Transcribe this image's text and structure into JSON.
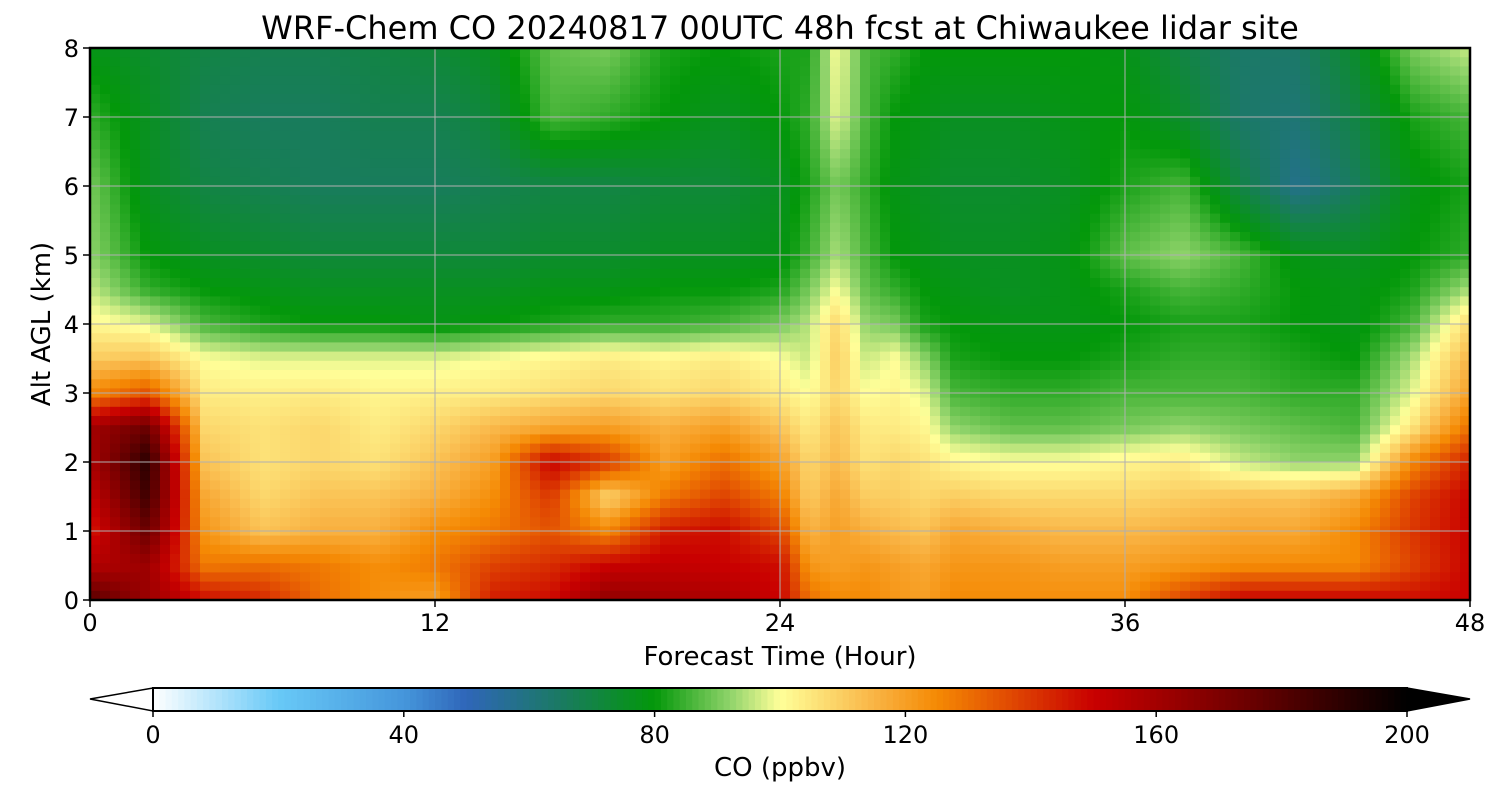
{
  "chart_data": {
    "type": "heatmap",
    "title": "WRF-Chem CO  20240817 00UTC 48h fcst at Chiwaukee lidar site",
    "xlabel": "Forecast Time (Hour)",
    "ylabel": "Alt AGL (km)",
    "xlim": [
      0,
      48
    ],
    "ylim": [
      0,
      8
    ],
    "x_ticks": [
      "0",
      "12",
      "24",
      "36",
      "48"
    ],
    "y_ticks": [
      "0",
      "1",
      "2",
      "3",
      "4",
      "5",
      "6",
      "7",
      "8"
    ],
    "grid": true,
    "colorbar": {
      "label": "CO  (ppbv)",
      "range": [
        0,
        200
      ],
      "ticks": [
        "0",
        "40",
        "80",
        "120",
        "160",
        "200"
      ],
      "extend": "both",
      "colors": [
        {
          "v": 0,
          "c": "#ffffff"
        },
        {
          "v": 20,
          "c": "#68c9f7"
        },
        {
          "v": 40,
          "c": "#4596db"
        },
        {
          "v": 50,
          "c": "#2f66b9"
        },
        {
          "v": 65,
          "c": "#1a7a62"
        },
        {
          "v": 80,
          "c": "#03980a"
        },
        {
          "v": 92,
          "c": "#8fd36a"
        },
        {
          "v": 100,
          "c": "#ffff99"
        },
        {
          "v": 115,
          "c": "#f9b445"
        },
        {
          "v": 125,
          "c": "#f58a04"
        },
        {
          "v": 150,
          "c": "#c90000"
        },
        {
          "v": 175,
          "c": "#6a0000"
        },
        {
          "v": 200,
          "c": "#000000"
        }
      ]
    },
    "time_hours": [
      0,
      2,
      4,
      6,
      8,
      10,
      12,
      14,
      16,
      18,
      20,
      22,
      24,
      25,
      26,
      27,
      28,
      29,
      30,
      32,
      34,
      36,
      38,
      40,
      42,
      44,
      46,
      48
    ],
    "altitudes_km": [
      0,
      0.5,
      1,
      1.5,
      2,
      2.5,
      3,
      3.5,
      4,
      4.5,
      5,
      6,
      7,
      8
    ],
    "values_ppbv": [
      [
        180,
        162,
        148,
        143,
        130,
        124,
        120,
        145,
        148,
        165,
        160,
        157,
        150,
        130,
        125,
        125,
        122,
        120,
        125,
        124,
        124,
        124,
        138,
        150,
        150,
        150,
        148,
        150
      ],
      [
        155,
        162,
        128,
        130,
        128,
        124,
        128,
        138,
        142,
        150,
        152,
        150,
        148,
        122,
        120,
        122,
        120,
        118,
        122,
        122,
        120,
        120,
        122,
        124,
        125,
        125,
        138,
        150
      ],
      [
        145,
        175,
        122,
        112,
        116,
        116,
        124,
        128,
        135,
        125,
        145,
        148,
        138,
        115,
        120,
        116,
        114,
        112,
        118,
        116,
        114,
        114,
        116,
        118,
        118,
        125,
        140,
        150
      ],
      [
        150,
        185,
        118,
        108,
        112,
        112,
        116,
        124,
        140,
        108,
        128,
        138,
        128,
        110,
        118,
        110,
        110,
        108,
        110,
        108,
        108,
        108,
        110,
        112,
        112,
        118,
        138,
        150
      ],
      [
        158,
        190,
        112,
        106,
        108,
        106,
        112,
        120,
        150,
        140,
        120,
        130,
        120,
        108,
        114,
        106,
        108,
        106,
        102,
        100,
        100,
        102,
        104,
        96,
        92,
        92,
        125,
        145
      ],
      [
        160,
        175,
        108,
        106,
        108,
        104,
        108,
        114,
        118,
        120,
        116,
        120,
        112,
        104,
        112,
        104,
        104,
        102,
        92,
        88,
        88,
        90,
        92,
        90,
        88,
        86,
        105,
        130
      ],
      [
        125,
        135,
        104,
        103,
        104,
        102,
        103,
        104,
        106,
        108,
        106,
        108,
        104,
        100,
        108,
        100,
        102,
        98,
        86,
        84,
        84,
        86,
        86,
        86,
        84,
        84,
        98,
        120
      ],
      [
        110,
        112,
        100,
        98,
        98,
        98,
        98,
        100,
        102,
        104,
        102,
        104,
        100,
        96,
        110,
        96,
        100,
        92,
        82,
        80,
        80,
        82,
        84,
        84,
        82,
        80,
        94,
        115
      ],
      [
        102,
        98,
        86,
        82,
        80,
        80,
        78,
        80,
        82,
        84,
        84,
        86,
        90,
        95,
        108,
        92,
        90,
        82,
        80,
        78,
        78,
        80,
        82,
        82,
        80,
        78,
        86,
        108
      ],
      [
        96,
        84,
        80,
        78,
        76,
        76,
        76,
        76,
        78,
        78,
        80,
        80,
        82,
        90,
        100,
        88,
        84,
        80,
        78,
        76,
        78,
        82,
        86,
        84,
        80,
        78,
        82,
        94
      ],
      [
        92,
        80,
        76,
        74,
        72,
        72,
        72,
        72,
        74,
        74,
        76,
        76,
        78,
        85,
        94,
        86,
        80,
        78,
        76,
        76,
        78,
        88,
        92,
        86,
        78,
        76,
        80,
        84
      ],
      [
        90,
        76,
        70,
        68,
        66,
        66,
        66,
        68,
        70,
        70,
        72,
        72,
        76,
        82,
        90,
        84,
        78,
        76,
        74,
        74,
        76,
        82,
        86,
        70,
        58,
        66,
        78,
        82
      ],
      [
        84,
        76,
        68,
        66,
        66,
        68,
        68,
        72,
        86,
        84,
        80,
        76,
        80,
        84,
        98,
        86,
        80,
        78,
        76,
        76,
        78,
        80,
        74,
        64,
        62,
        70,
        82,
        86
      ],
      [
        78,
        74,
        70,
        68,
        68,
        70,
        72,
        76,
        88,
        90,
        82,
        80,
        82,
        82,
        100,
        86,
        84,
        80,
        80,
        80,
        80,
        78,
        70,
        64,
        64,
        74,
        90,
        96
      ]
    ]
  }
}
